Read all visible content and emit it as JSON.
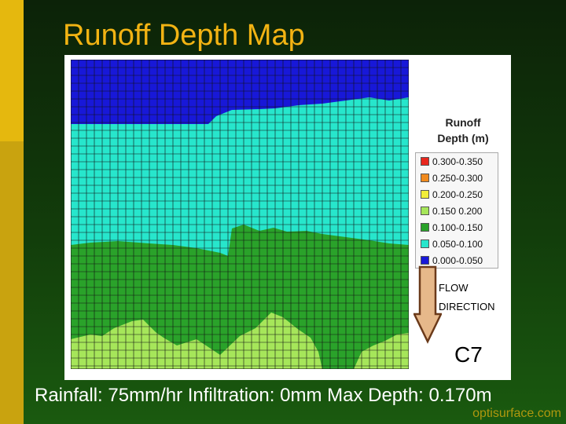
{
  "title": "Runoff Depth Map",
  "legend": {
    "title_line1": "Runoff",
    "title_line2": "Depth (m)",
    "items": [
      {
        "label": "0.300-0.350",
        "color": "#e8271e"
      },
      {
        "label": "0.250-0.300",
        "color": "#f08a1e"
      },
      {
        "label": "0.200-0.250",
        "color": "#f2ee3a"
      },
      {
        "label": "0.150 0.200",
        "color": "#a6e65a"
      },
      {
        "label": "0.100-0.150",
        "color": "#2aa22a"
      },
      {
        "label": "0.050-0.100",
        "color": "#27e6cc"
      },
      {
        "label": "0.000-0.050",
        "color": "#1818d8"
      }
    ]
  },
  "flow_direction": {
    "line1": "FLOW",
    "line2": "DIRECTION"
  },
  "scenario_label": "C7",
  "caption": "Rainfall: 75mm/hr   Infiltration: 0mm  Max Depth: 0.170m",
  "watermark": "optisurface.com",
  "colors": {
    "title": "#f2b313",
    "accent_bar": "#c9a30f",
    "arrow_fill": "#e6b88a",
    "arrow_stroke": "#6b3a1a",
    "grid": "#111111"
  }
}
